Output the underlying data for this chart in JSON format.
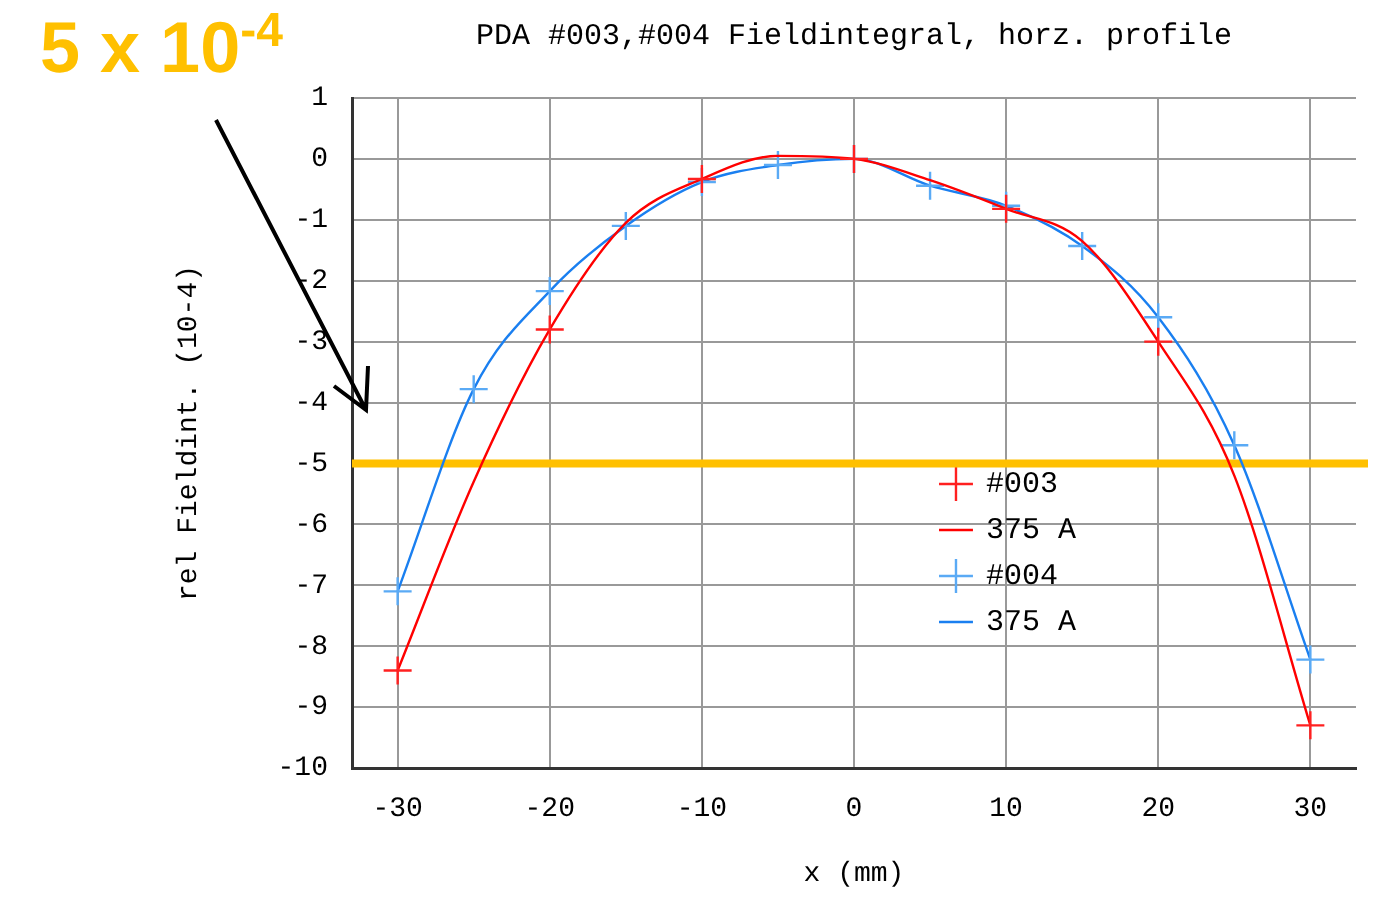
{
  "chart_data": {
    "type": "line",
    "title": "PDA #003,#004 Fieldintegral, horz. profile",
    "xlabel": "x (mm)",
    "ylabel": "rel Fieldint. (10-4)",
    "annotations": [
      "5 x 10$^{-4}$"
    ],
    "xlim": [
      -33,
      33
    ],
    "xticks": [
      -30,
      -20,
      -10,
      0,
      10,
      20,
      30
    ],
    "ylim": [
      -10,
      1
    ],
    "yticks": [
      -10,
      -9,
      -8,
      -7,
      -6,
      -5,
      -4,
      -3,
      -2,
      -1,
      0,
      1
    ],
    "grid": true,
    "legend": "center right",
    "line_style": "solid",
    "ref_lines": [
      {
        "axis": "y",
        "value": -5,
        "color": "#ffc000"
      }
    ],
    "series": [
      {
        "name": "#003",
        "type": "scatter",
        "marker": "cross",
        "color": "#ff2020",
        "x": [
          -30,
          -20,
          -10,
          0,
          10,
          20,
          30
        ],
        "values": [
          -8.4,
          -2.8,
          -0.33,
          0,
          -0.82,
          -3.0,
          -9.3
        ]
      },
      {
        "name": "375 A",
        "type": "line",
        "marker": "none",
        "color": "#ff0000",
        "x": [
          -30,
          -25,
          -20,
          -15,
          -10,
          -5,
          0,
          5,
          10,
          15,
          20,
          25,
          30
        ],
        "values": [
          -8.4,
          -5.3,
          -2.8,
          -1.05,
          -0.33,
          0.05,
          0,
          -0.35,
          -0.82,
          -1.35,
          -3.0,
          -5.2,
          -9.3
        ]
      },
      {
        "name": "#004",
        "type": "scatter",
        "marker": "cross",
        "color": "#5aaaf5",
        "x": [
          -30,
          -25,
          -20,
          -15,
          -10,
          -5,
          0,
          5,
          10,
          15,
          20,
          25,
          30
        ],
        "values": [
          -7.1,
          -3.78,
          -2.17,
          -1.1,
          -0.38,
          -0.1,
          0,
          -0.44,
          -0.77,
          -1.43,
          -2.6,
          -4.7,
          -8.22
        ]
      },
      {
        "name": "375 A",
        "type": "line",
        "marker": "none",
        "color": "#1a7ff0",
        "x": [
          -30,
          -25,
          -20,
          -15,
          -10,
          -5,
          0,
          5,
          10,
          15,
          20,
          25,
          30
        ],
        "values": [
          -7.1,
          -3.78,
          -2.17,
          -1.1,
          -0.38,
          -0.1,
          0,
          -0.44,
          -0.77,
          -1.43,
          -2.6,
          -4.7,
          -8.22
        ]
      }
    ]
  }
}
